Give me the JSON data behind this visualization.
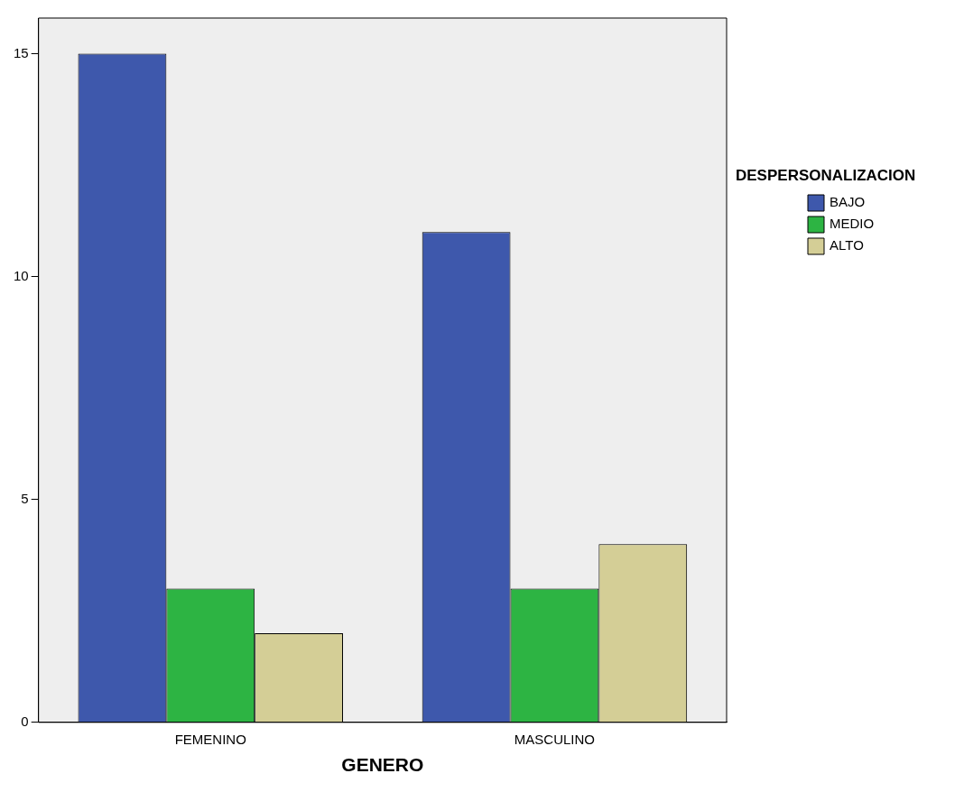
{
  "chart_data": {
    "type": "bar",
    "xlabel": "GENERO",
    "legend_title": "DESPERSONALIZACION",
    "categories": [
      "FEMENINO",
      "MASCULINO"
    ],
    "series": [
      {
        "name": "BAJO",
        "color": "#3e58ac",
        "values": [
          15,
          11
        ]
      },
      {
        "name": "MEDIO",
        "color": "#2db443",
        "values": [
          3,
          3
        ]
      },
      {
        "name": "ALTO",
        "color": "#d4ce96",
        "values": [
          2,
          4
        ]
      }
    ],
    "ylim": [
      0,
      15.8
    ],
    "yticks": [
      0,
      5,
      10,
      15
    ],
    "grid": false,
    "legend": "right"
  }
}
